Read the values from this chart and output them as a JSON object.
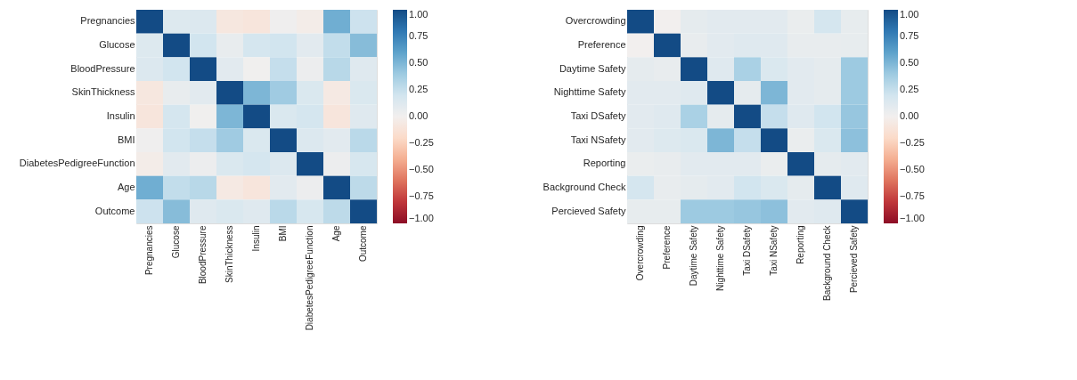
{
  "chart_data": [
    {
      "type": "heatmap",
      "categories": [
        "Pregnancies",
        "Glucose",
        "BloodPressure",
        "SkinThickness",
        "Insulin",
        "BMI",
        "DiabetesPedigreeFunction",
        "Age",
        "Outcome"
      ],
      "y_categories": [
        "Pregnancies",
        "Glucose",
        "BloodPressure",
        "SkinThickness",
        "Insulin",
        "BMI",
        "DiabetesPedigreeFunction",
        "Age",
        "Outcome"
      ],
      "cells": [
        [
          1,
          0.13,
          0.14,
          -0.08,
          -0.1,
          0.02,
          -0.03,
          0.54,
          0.22
        ],
        [
          0.13,
          1,
          0.2,
          0.06,
          0.18,
          0.2,
          0.1,
          0.26,
          0.47
        ],
        [
          0.14,
          0.2,
          1,
          0.1,
          0.01,
          0.25,
          0.04,
          0.3,
          0.12
        ],
        [
          -0.08,
          0.06,
          0.1,
          1,
          0.5,
          0.39,
          0.15,
          -0.06,
          0.15
        ],
        [
          -0.1,
          0.18,
          0.01,
          0.5,
          1,
          0.15,
          0.18,
          -0.1,
          0.12
        ],
        [
          0.02,
          0.2,
          0.25,
          0.39,
          0.15,
          1,
          0.14,
          0.1,
          0.29
        ],
        [
          -0.03,
          0.1,
          0.04,
          0.15,
          0.18,
          0.14,
          1,
          0.04,
          0.17
        ],
        [
          0.54,
          0.26,
          0.3,
          -0.06,
          -0.1,
          0.1,
          0.04,
          1,
          0.28
        ],
        [
          0.22,
          0.47,
          0.12,
          0.15,
          0.12,
          0.29,
          0.17,
          0.28,
          1
        ]
      ],
      "clim": [
        -1,
        1
      ],
      "cticks": [
        {
          "value": -1,
          "label": "−1.00"
        },
        {
          "value": -0.75,
          "label": "−0.75"
        },
        {
          "value": -0.5,
          "label": "−0.50"
        },
        {
          "value": -0.25,
          "label": "−0.25"
        },
        {
          "value": 0,
          "label": "0.00"
        },
        {
          "value": 0.25,
          "label": "0.25"
        },
        {
          "value": 0.5,
          "label": "0.50"
        },
        {
          "value": 0.75,
          "label": "0.75"
        },
        {
          "value": 1,
          "label": "1.00"
        }
      ]
    },
    {
      "type": "heatmap",
      "categories": [
        "Overcrowding",
        "Preference",
        "Daytime Safety",
        "Nighttime Safety",
        "Taxi DSafety",
        "Taxi NSafety",
        "Reporting",
        "Background Check",
        "Percieved Safety"
      ],
      "y_categories": [
        "Overcrowding",
        "Preference",
        "Daytime Safety",
        "Nighttime Safety",
        "Taxi DSafety",
        "Taxi NSafety",
        "Reporting",
        "Background Check",
        "Percieved Safety"
      ],
      "cells": [
        [
          1,
          0.0,
          0.08,
          0.1,
          0.1,
          0.1,
          0.05,
          0.18,
          0.07
        ],
        [
          0.0,
          1,
          0.06,
          0.1,
          0.12,
          0.12,
          0.06,
          0.06,
          0.07
        ],
        [
          0.08,
          0.06,
          1,
          0.12,
          0.35,
          0.15,
          0.1,
          0.08,
          0.4
        ],
        [
          0.1,
          0.1,
          0.12,
          1,
          0.08,
          0.5,
          0.1,
          0.08,
          0.4
        ],
        [
          0.1,
          0.12,
          0.35,
          0.08,
          1,
          0.25,
          0.12,
          0.2,
          0.42
        ],
        [
          0.1,
          0.13,
          0.15,
          0.5,
          0.25,
          1,
          0.05,
          0.15,
          0.45
        ],
        [
          0.05,
          0.06,
          0.1,
          0.1,
          0.1,
          0.05,
          1,
          0.08,
          0.1
        ],
        [
          0.18,
          0.06,
          0.08,
          0.1,
          0.2,
          0.15,
          0.08,
          1,
          0.12
        ],
        [
          0.07,
          0.07,
          0.4,
          0.4,
          0.42,
          0.45,
          0.1,
          0.12,
          1
        ]
      ],
      "clim": [
        -1,
        1
      ],
      "cticks": [
        {
          "value": -1,
          "label": "−1.00"
        },
        {
          "value": -0.75,
          "label": "−0.75"
        },
        {
          "value": -0.5,
          "label": "−0.50"
        },
        {
          "value": -0.25,
          "label": "−0.25"
        },
        {
          "value": 0,
          "label": "0.00"
        },
        {
          "value": 0.25,
          "label": "0.25"
        },
        {
          "value": 0.5,
          "label": "0.50"
        },
        {
          "value": 0.75,
          "label": "0.75"
        },
        {
          "value": 1,
          "label": "1.00"
        }
      ]
    }
  ]
}
